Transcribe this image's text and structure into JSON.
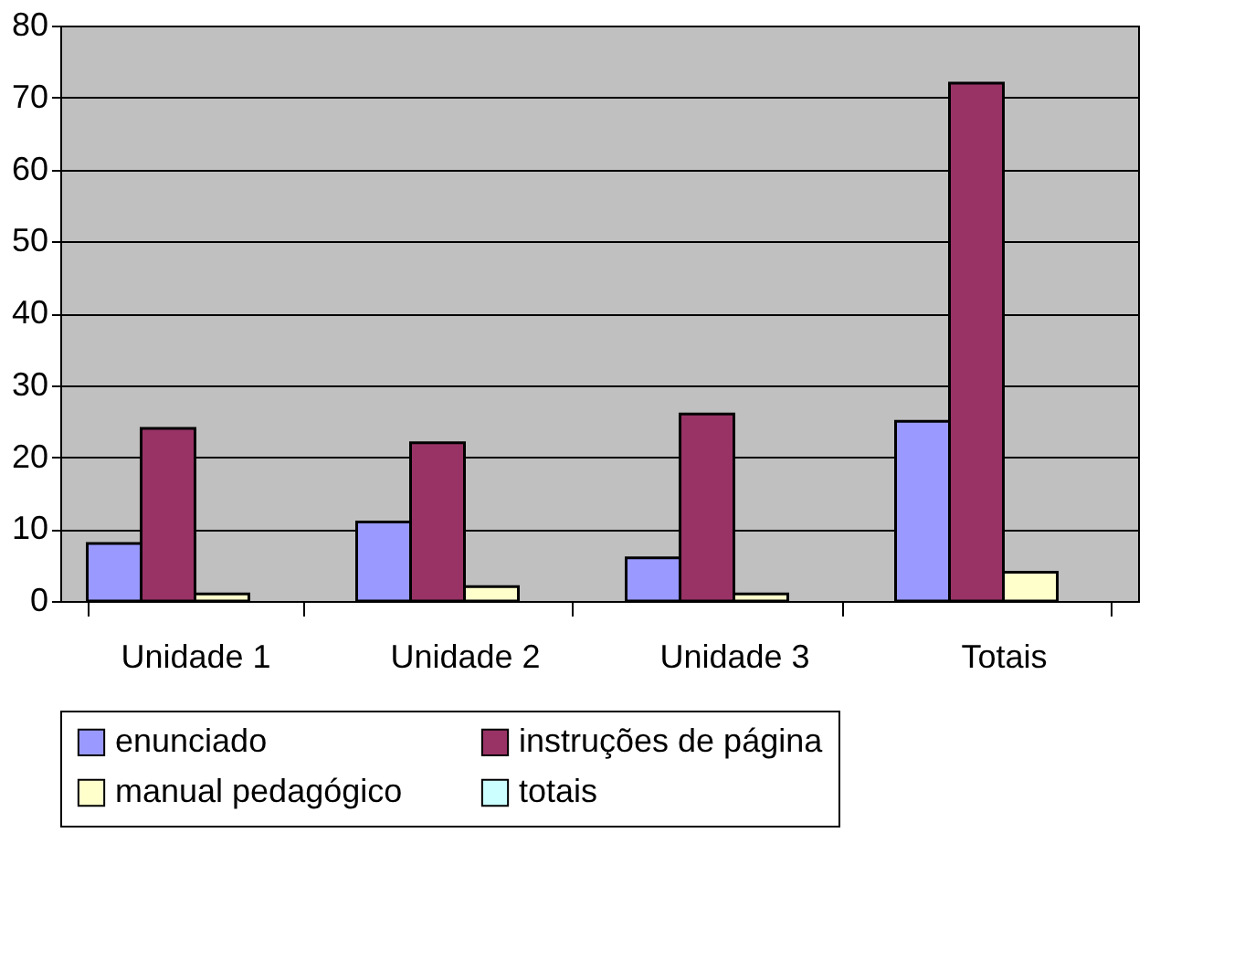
{
  "chart_data": {
    "type": "bar",
    "categories": [
      "Unidade 1",
      "Unidade 2",
      "Unidade 3",
      "Totais"
    ],
    "series": [
      {
        "name": "enunciado",
        "color": "#9999ff",
        "values": [
          8,
          11,
          6,
          25
        ]
      },
      {
        "name": "instruções de página",
        "color": "#993366",
        "values": [
          24,
          22,
          26,
          72
        ]
      },
      {
        "name": "manual pedagógico",
        "color": "#ffffcc",
        "values": [
          1,
          2,
          1,
          4
        ]
      },
      {
        "name": "totais",
        "color": "#ccffff",
        "values": [
          null,
          null,
          null,
          null
        ]
      }
    ],
    "ylim": [
      0,
      80
    ],
    "yticks": [
      0,
      10,
      20,
      30,
      40,
      50,
      60,
      70,
      80
    ],
    "grid": "y",
    "legend": "bottom"
  }
}
